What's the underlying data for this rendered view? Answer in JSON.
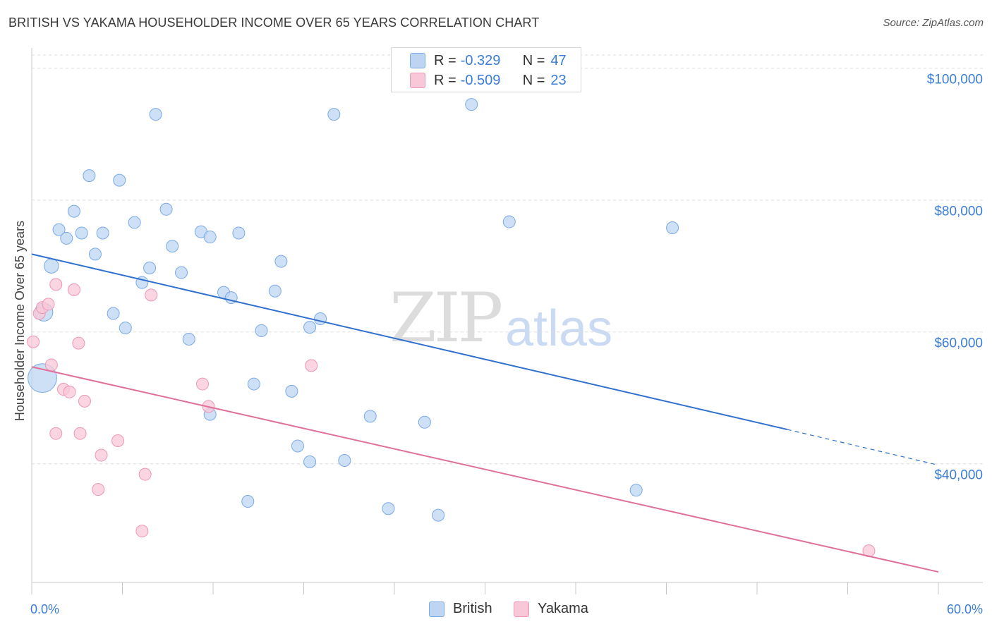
{
  "title": "BRITISH VS YAKAMA HOUSEHOLDER INCOME OVER 65 YEARS CORRELATION CHART",
  "source": "Source: ZipAtlas.com",
  "watermark": {
    "zip": "ZIP",
    "atlas": "atlas"
  },
  "legend": {
    "british": {
      "r_label": "R =",
      "r_value": "-0.329",
      "n_label": "N =",
      "n_value": "47"
    },
    "yakama": {
      "r_label": "R =",
      "r_value": "-0.509",
      "n_label": "N =",
      "n_value": "23"
    }
  },
  "bottom_legend": {
    "british": "British",
    "yakama": "Yakama"
  },
  "colors": {
    "british_fill": "#bdd5f3",
    "british_stroke": "#7aaae6",
    "british_line": "#2f6fcf",
    "yakama_fill": "#f9c8d8",
    "yakama_stroke": "#ee96b4",
    "yakama_line": "#e0709a",
    "axis_text": "#3b7dd8",
    "grid": "#dddddd"
  },
  "chart_data": {
    "type": "scatter",
    "title": "BRITISH VS YAKAMA HOUSEHOLDER INCOME OVER 65 YEARS CORRELATION CHART",
    "xlabel": "",
    "ylabel": "Householder Income Over 65 years",
    "xlim": [
      0,
      60
    ],
    "ylim": [
      22000,
      102000
    ],
    "x_tick_labels": [
      "0.0%",
      "60.0%"
    ],
    "y_ticks": [
      40000,
      60000,
      80000,
      100000
    ],
    "y_tick_labels": [
      "$40,000",
      "$60,000",
      "$80,000",
      "$100,000"
    ],
    "grid": true,
    "legend_position": "top-center",
    "series": [
      {
        "name": "British",
        "points": [
          [
            0.7,
            53000,
            2.4
          ],
          [
            0.8,
            63000,
            1.5
          ],
          [
            1.3,
            70000,
            1.2
          ],
          [
            1.8,
            75500,
            1
          ],
          [
            2.3,
            74200,
            1
          ],
          [
            2.8,
            78300,
            1
          ],
          [
            3.3,
            75000,
            1
          ],
          [
            3.8,
            83700,
            1
          ],
          [
            4.2,
            71800,
            1
          ],
          [
            4.7,
            75000,
            1
          ],
          [
            5.4,
            62800,
            1
          ],
          [
            5.8,
            83000,
            1
          ],
          [
            6.2,
            60600,
            1
          ],
          [
            6.8,
            76600,
            1
          ],
          [
            7.3,
            67500,
            1
          ],
          [
            7.8,
            69700,
            1
          ],
          [
            8.2,
            93000,
            1
          ],
          [
            8.9,
            78600,
            1
          ],
          [
            9.3,
            73000,
            1
          ],
          [
            9.9,
            69000,
            1
          ],
          [
            10.4,
            58900,
            1
          ],
          [
            11.2,
            75200,
            1
          ],
          [
            11.8,
            74400,
            1
          ],
          [
            11.8,
            47500,
            1
          ],
          [
            12.7,
            66000,
            1
          ],
          [
            13.2,
            65200,
            1
          ],
          [
            13.7,
            75000,
            1
          ],
          [
            14.3,
            34300,
            1
          ],
          [
            14.7,
            52100,
            1
          ],
          [
            15.2,
            60200,
            1
          ],
          [
            16.1,
            66200,
            1
          ],
          [
            16.5,
            70700,
            1
          ],
          [
            17.2,
            51000,
            1
          ],
          [
            17.6,
            42700,
            1
          ],
          [
            18.4,
            60700,
            1
          ],
          [
            18.4,
            40300,
            1
          ],
          [
            19.1,
            62000,
            1
          ],
          [
            20.0,
            93000,
            1
          ],
          [
            20.7,
            40500,
            1
          ],
          [
            22.4,
            47200,
            1
          ],
          [
            23.6,
            33200,
            1
          ],
          [
            26.0,
            46300,
            1
          ],
          [
            26.9,
            32200,
            1
          ],
          [
            29.1,
            94500,
            1
          ],
          [
            31.6,
            76700,
            1
          ],
          [
            40.0,
            36000,
            1
          ],
          [
            42.4,
            75800,
            1
          ]
        ]
      },
      {
        "name": "Yakama",
        "points": [
          [
            0.1,
            58500,
            1
          ],
          [
            0.5,
            62800,
            1
          ],
          [
            0.7,
            63700,
            1
          ],
          [
            1.1,
            64200,
            1
          ],
          [
            1.3,
            55000,
            1
          ],
          [
            1.6,
            67200,
            1
          ],
          [
            1.6,
            44600,
            1
          ],
          [
            2.1,
            51300,
            1
          ],
          [
            2.5,
            50900,
            1
          ],
          [
            2.8,
            66400,
            1
          ],
          [
            3.1,
            58300,
            1
          ],
          [
            3.2,
            44600,
            1
          ],
          [
            3.5,
            49500,
            1
          ],
          [
            4.4,
            36100,
            1
          ],
          [
            4.6,
            41300,
            1
          ],
          [
            5.7,
            43500,
            1
          ],
          [
            7.3,
            29800,
            1
          ],
          [
            7.5,
            38400,
            1
          ],
          [
            7.9,
            65600,
            1
          ],
          [
            11.3,
            52100,
            1
          ],
          [
            11.7,
            48700,
            1
          ],
          [
            18.5,
            54900,
            1
          ],
          [
            55.4,
            26800,
            1
          ]
        ]
      }
    ],
    "trend_lines": [
      {
        "name": "British",
        "x": [
          0,
          50
        ],
        "y": [
          71800,
          45200
        ],
        "dashed_to_x": 60,
        "dashed_to_y": 39800
      },
      {
        "name": "Yakama",
        "x": [
          0,
          60
        ],
        "y": [
          54700,
          23600
        ]
      }
    ]
  }
}
